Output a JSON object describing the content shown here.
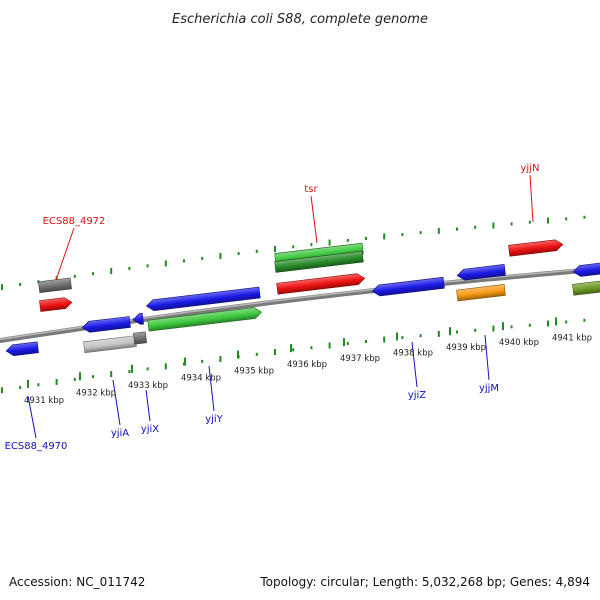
{
  "title": "Escherichia coli S88, complete genome",
  "footer": {
    "accession": "Accession: NC_011742",
    "stats": "Topology: circular; Length: 5,032,268 bp; Genes: 4,894"
  },
  "colors": {
    "blue": "#1a1ae6",
    "red": "#ee1111",
    "green": "#3ec83e",
    "dark_green": "#2a8c2a",
    "gray": "#6e6e6e",
    "light_gray": "#c4c4c4",
    "orange": "#f59a12",
    "olive": "#6e9a24",
    "tick": "#1f8a1f",
    "backbone": "#7a7a7a",
    "label_red": "#dd1111",
    "label_blue": "#1111bb"
  },
  "kbp_labels": [
    "4931 kbp",
    "4932 kbp",
    "4933 kbp",
    "4934 kbp",
    "4935 kbp",
    "4936 kbp",
    "4937 kbp",
    "4938 kbp",
    "4939 kbp",
    "4940 kbp",
    "4941 kbp"
  ],
  "gene_labels": {
    "forward": [
      "ECS88_4972",
      "tsr",
      "yjjN"
    ],
    "reverse": [
      "ECS88_4970",
      "yjiA",
      "yjiX",
      "yjiY",
      "yjiZ",
      "yjjM"
    ]
  }
}
